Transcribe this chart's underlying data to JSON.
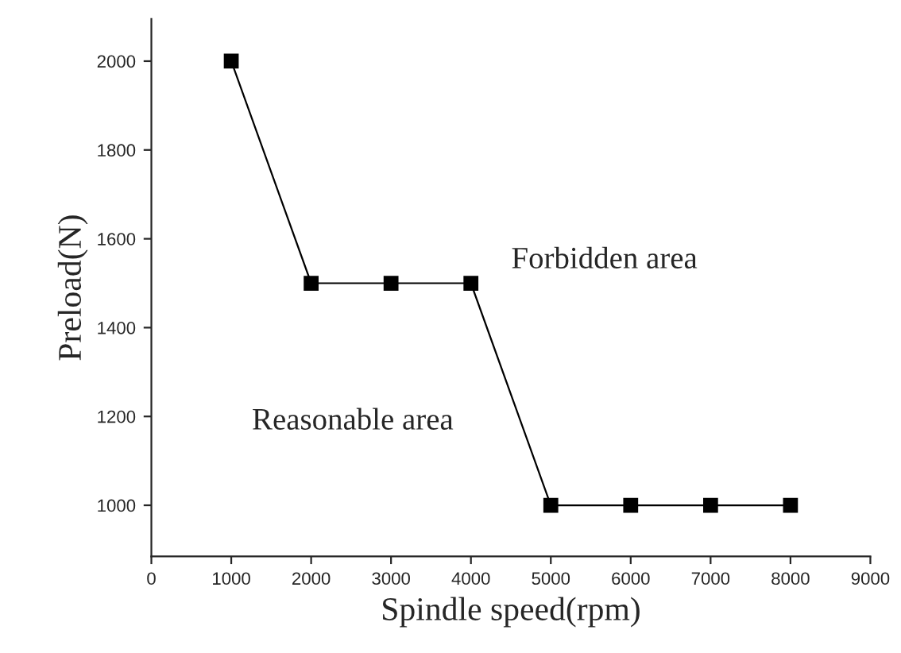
{
  "chart_data": {
    "type": "line",
    "xlabel": "Spindle speed(rpm)",
    "ylabel": "Preload(N)",
    "x": [
      1000,
      2000,
      3000,
      4000,
      5000,
      6000,
      7000,
      8000
    ],
    "series": [
      {
        "color": "#000000",
        "values": [
          2000,
          1500,
          1500,
          1500,
          1000,
          1000,
          1000,
          1000
        ]
      }
    ],
    "xlim": [
      0,
      9000
    ],
    "xticks": [
      0,
      1000,
      2000,
      3000,
      4000,
      5000,
      6000,
      7000,
      8000,
      9000
    ],
    "ylim": [
      885,
      2095
    ],
    "yticks": [
      1000,
      1200,
      1400,
      1600,
      1800,
      2000
    ],
    "marker": "square",
    "line_style": "solid",
    "grid": false,
    "legend": false,
    "annotations": [
      "Forbidden area",
      "Reasonable area"
    ]
  }
}
